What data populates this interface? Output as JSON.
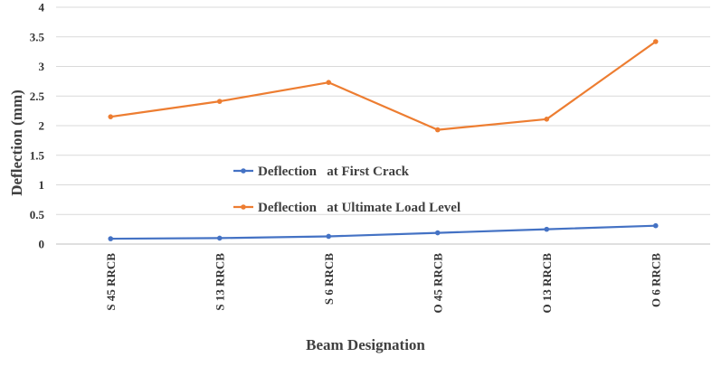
{
  "chart_data": {
    "type": "line",
    "title": "",
    "xlabel": "Beam Designation",
    "ylabel": "Deflection (mm)",
    "categories": [
      "S 45 RRCB",
      "S 13 RRCB",
      "S 6 RRCB",
      "O 45 RRCB",
      "O 13 RRCB",
      "O 6 RRCB"
    ],
    "ylim": [
      0,
      4
    ],
    "yticks": [
      0,
      0.5,
      1,
      1.5,
      2,
      2.5,
      3,
      3.5,
      4
    ],
    "grid": true,
    "legend_position": "center-left",
    "series": [
      {
        "name": "Deflection   at First Crack",
        "color": "#4472c4",
        "values": [
          0.09,
          0.1,
          0.13,
          0.19,
          0.25,
          0.31
        ]
      },
      {
        "name": "Deflection   at Ultimate Load Level",
        "color": "#ed7d31",
        "values": [
          2.15,
          2.41,
          2.73,
          1.93,
          2.11,
          3.42
        ]
      }
    ]
  }
}
